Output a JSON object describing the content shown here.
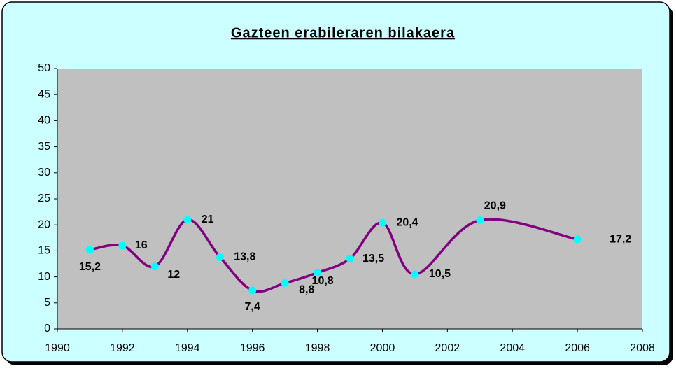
{
  "chart_data": {
    "type": "line",
    "title": "Gazteen erabileraren bilakaera",
    "x": [
      1991,
      1992,
      1993,
      1994,
      1995,
      1996,
      1997,
      1998,
      1999,
      2000,
      2001,
      2003,
      2006
    ],
    "series": [
      {
        "color": "#800080",
        "marker_color": "#00ffff",
        "values": [
          15.2,
          16,
          12,
          21,
          13.8,
          7.4,
          8.8,
          10.8,
          13.5,
          20.4,
          10.5,
          20.9,
          17.2
        ],
        "value_labels": [
          "15,2",
          "16",
          "12",
          "21",
          "13,8",
          "7,4",
          "8,8",
          "10,8",
          "13,5",
          "20,4",
          "10,5",
          "20,9",
          "17,2"
        ]
      }
    ],
    "xlim": [
      1990,
      2008
    ],
    "xticks": [
      1990,
      1992,
      1994,
      1996,
      1998,
      2000,
      2002,
      2004,
      2006,
      2008
    ],
    "ylim": [
      0,
      50
    ],
    "yticks": [
      0,
      5,
      10,
      15,
      20,
      25,
      30,
      35,
      40,
      45,
      50
    ],
    "smooth": true
  }
}
